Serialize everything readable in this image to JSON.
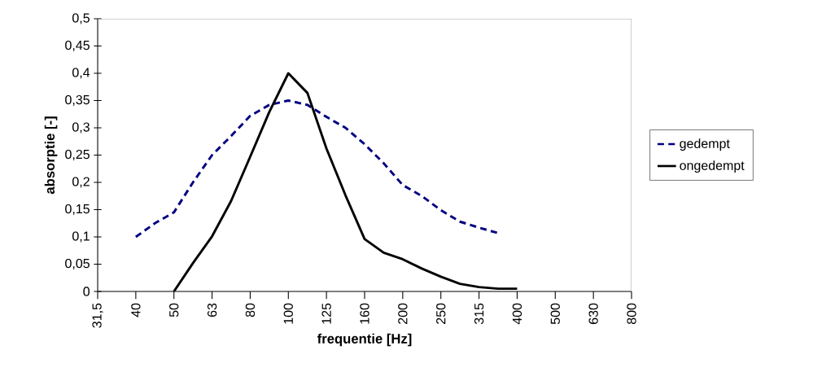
{
  "chart_data": {
    "type": "line",
    "xlabel": "frequentie [Hz]",
    "ylabel": "absorptie [-]",
    "categories": [
      "31,5",
      null,
      "40",
      null,
      "50",
      null,
      "63",
      null,
      "80",
      null,
      "100",
      null,
      "125",
      null,
      "160",
      null,
      "200",
      null,
      "250",
      null,
      "315",
      null,
      "400",
      null,
      "500",
      null,
      "630",
      null,
      "800"
    ],
    "ylim": [
      0,
      0.5
    ],
    "yticks": [
      0,
      {
        "value": 0.05,
        "label": "0,05"
      },
      {
        "value": 0.1,
        "label": "0,1"
      },
      {
        "value": 0.15,
        "label": "0,15"
      },
      {
        "value": 0.2,
        "label": "0,2"
      },
      {
        "value": 0.25,
        "label": "0,25"
      },
      {
        "value": 0.3,
        "label": "0,3"
      },
      {
        "value": 0.35,
        "label": "0,35"
      },
      {
        "value": 0.4,
        "label": "0,4"
      },
      {
        "value": 0.45,
        "label": "0,45"
      },
      {
        "value": 0.5,
        "label": "0,5"
      }
    ],
    "grid": false,
    "legend": "right",
    "series": [
      {
        "name": "gedempt",
        "color": "#000080",
        "line_style": "dashed",
        "values": [
          null,
          null,
          0.1,
          0.125,
          0.145,
          0.2,
          0.25,
          0.285,
          0.322,
          0.342,
          0.35,
          0.342,
          0.32,
          0.3,
          0.27,
          0.235,
          0.195,
          0.175,
          0.149,
          0.128,
          0.117,
          0.107,
          null,
          null,
          null,
          null,
          null,
          null,
          null
        ]
      },
      {
        "name": "ongedempt",
        "color": "#000000",
        "line_style": "solid",
        "values": [
          null,
          null,
          null,
          null,
          0,
          0.052,
          0.101,
          0.166,
          0.247,
          0.329,
          0.4,
          0.364,
          0.262,
          0.176,
          0.096,
          0.071,
          0.059,
          0.042,
          0.027,
          0.014,
          0.008,
          0.005,
          0.005,
          null,
          null,
          null,
          null,
          null,
          null
        ]
      }
    ]
  }
}
